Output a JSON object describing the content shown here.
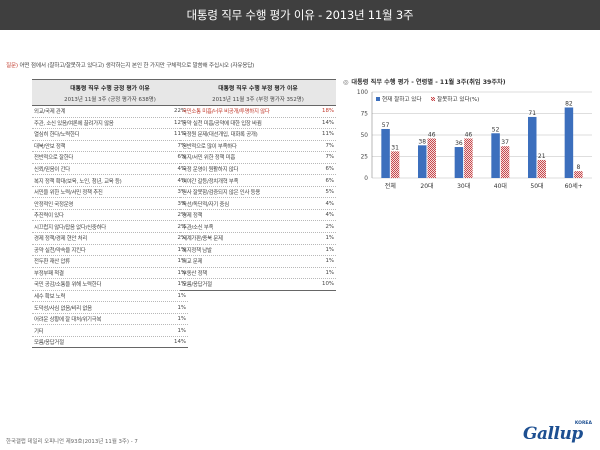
{
  "header": {
    "title": "대통령 직무 수행 평가 이유 - 2013년 11월 3주"
  },
  "question": {
    "label": "질문)",
    "text": " 어떤 점에서 (잘하고/잘못하고 있다고) 생각하는지 본인 한 가지만 구체적으로 말씀해 주십시오 (자유응답)"
  },
  "positive_table": {
    "title": "대통령 직무 수행 긍정 평가 이유",
    "subtitle": "2013년 11월 3주 (긍정 평가자 638명)",
    "rows": [
      {
        "label": "외교/국제 관계",
        "value": "22%"
      },
      {
        "label": "주관, 소신 있음/여론에 끌려가지 않음",
        "value": "12%"
      },
      {
        "label": "열심히 한다/노력한다",
        "value": "11%"
      },
      {
        "label": "대북/안보 정책",
        "value": "7%"
      },
      {
        "label": "전반적으로 잘한다",
        "value": "6%"
      },
      {
        "label": "신뢰/믿음이 간다",
        "value": "4%"
      },
      {
        "label": "복지 정책 확대(보육, 노인, 청년, 교육 등)",
        "value": "4%"
      },
      {
        "label": "서민을 위한 노력/서민 정책 추진",
        "value": "3%"
      },
      {
        "label": "안정적인 국정운영",
        "value": "3%"
      },
      {
        "label": "추진력이 있다",
        "value": "2%"
      },
      {
        "label": "시끄럽지 않다/잡음 없다/신중하다",
        "value": "2%"
      },
      {
        "label": "경제 정책/경제 현안 처리",
        "value": "2%"
      },
      {
        "label": "공약 실천/약속을 지킨다",
        "value": "1%"
      },
      {
        "label": "전두환 재산 압류",
        "value": "1%"
      },
      {
        "label": "부정부패 척결",
        "value": "1%"
      },
      {
        "label": "국민 공감/소통을 위해 노력한다",
        "value": "1%"
      },
      {
        "label": "세수 확보 노력",
        "value": "1%"
      },
      {
        "label": "도덕성/사심 없음/비리 없음",
        "value": "1%"
      },
      {
        "label": "어려운 상황에 잘 대처/위기극복",
        "value": "1%"
      },
      {
        "label": "기타",
        "value": "1%"
      },
      {
        "label": "모름/응답거절",
        "value": "14%"
      }
    ]
  },
  "negative_table": {
    "title": "대통령 직무 수행 부정 평가 이유",
    "subtitle": "2013년 11월 3주 (부정 평가자 352명)",
    "rows": [
      {
        "label": "국민소통 미흡/너무 비공개/투명하지 않다",
        "value": "18%",
        "highlight": true
      },
      {
        "label": "공약 실천 미흡/공약에 대한 입장 바뀜",
        "value": "14%"
      },
      {
        "label": "국정원 문제(대선개입, 대화록 공개)",
        "value": "11%"
      },
      {
        "label": "전반적으로 많이 부족하다",
        "value": "7%"
      },
      {
        "label": "복지/서민 위한 정책 미흡",
        "value": "7%"
      },
      {
        "label": "국정 운영이 원활하지 않다",
        "value": "6%"
      },
      {
        "label": "여야간 갈등/정치개혁 부족",
        "value": "6%"
      },
      {
        "label": "인사 잘못함/검증되지 않은 인사 등용",
        "value": "5%"
      },
      {
        "label": "독선/독단적/자기 중심",
        "value": "4%"
      },
      {
        "label": "경제 정책",
        "value": "4%"
      },
      {
        "label": "주관/소신 부족",
        "value": "2%"
      },
      {
        "label": "세계가판/종북 문제",
        "value": "1%"
      },
      {
        "label": "복지정책 남발",
        "value": "1%"
      },
      {
        "label": "외교 문제",
        "value": "1%"
      },
      {
        "label": "부동산 정책",
        "value": "1%"
      },
      {
        "label": "모름/응답거절",
        "value": "10%"
      }
    ]
  },
  "chart_data": {
    "type": "bar",
    "title": "대통령 직무 수행 평가 - 연령별 - 11월 3주(취임 39주차)",
    "categories": [
      "전체",
      "20대",
      "30대",
      "40대",
      "50대",
      "60세+"
    ],
    "series": [
      {
        "name": "현재 잘하고 있다",
        "values": [
          57,
          38,
          36,
          52,
          71,
          82
        ],
        "color": "#3c6fbd"
      },
      {
        "name": "잘못하고 있다(%)",
        "values": [
          31,
          46,
          46,
          37,
          21,
          8
        ],
        "color": "#c9484c"
      }
    ],
    "ylim": [
      0,
      100
    ],
    "yticks": [
      0,
      25,
      50,
      75,
      100
    ],
    "grid": true,
    "legend": "top"
  },
  "footer": {
    "text": "한국갤럽 데일리 오피니언 제93호(2013년 11월 3주) - 7"
  },
  "logo": {
    "main": "Gallup",
    "korea": "KOREA"
  }
}
